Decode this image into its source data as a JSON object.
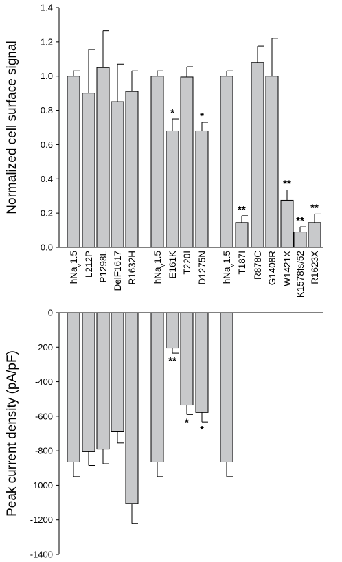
{
  "chart_data": [
    {
      "type": "bar",
      "ylabel": "Normalized cell surface signal",
      "ylim": [
        0.0,
        1.4
      ],
      "yticks": [
        "0.0",
        "0.2",
        "0.4",
        "0.6",
        "0.8",
        "1.0",
        "1.2",
        "1.4"
      ],
      "categories": [
        "hNav1.5",
        "L212P",
        "P1298L",
        "DelF1617",
        "R1632H",
        "hNav1.5",
        "E161K",
        "T220I",
        "D1275N",
        "hNav1.5",
        "T187I",
        "R878C",
        "G1408R",
        "W1421X",
        "K1578fs/52",
        "R1623X"
      ],
      "values": [
        1.0,
        0.9,
        1.05,
        0.85,
        0.91,
        1.0,
        0.68,
        0.995,
        0.68,
        1.0,
        0.145,
        1.08,
        1.0,
        0.275,
        0.09,
        0.145
      ],
      "errors": [
        0.03,
        0.255,
        0.215,
        0.22,
        0.12,
        0.03,
        0.07,
        0.06,
        0.05,
        0.03,
        0.04,
        0.095,
        0.22,
        0.06,
        0.03,
        0.05
      ],
      "significance": [
        "",
        "",
        "",
        "",
        "",
        "",
        "*",
        "",
        "*",
        "",
        "**",
        "",
        "",
        "**",
        "**",
        "**"
      ]
    },
    {
      "type": "bar",
      "ylabel": "Peak current density (pA/pF)",
      "ylim": [
        -1400,
        0
      ],
      "yticks": [
        "0",
        "-200",
        "-400",
        "-600",
        "-800",
        "-1000",
        "-1200",
        "-1400"
      ],
      "categories": [
        "hNav1.5",
        "L212P",
        "P1298L",
        "DelF1617",
        "R1632H",
        "hNav1.5",
        "E161K",
        "T220I",
        "D1275N",
        "hNav1.5"
      ],
      "values": [
        -865,
        -805,
        -790,
        -690,
        -1105,
        -865,
        -205,
        -535,
        -578,
        -865
      ],
      "errors": [
        85,
        80,
        85,
        65,
        115,
        85,
        30,
        55,
        55,
        85
      ],
      "significance": [
        "",
        "",
        "",
        "",
        "",
        "",
        "**",
        "*",
        "*",
        ""
      ]
    }
  ]
}
